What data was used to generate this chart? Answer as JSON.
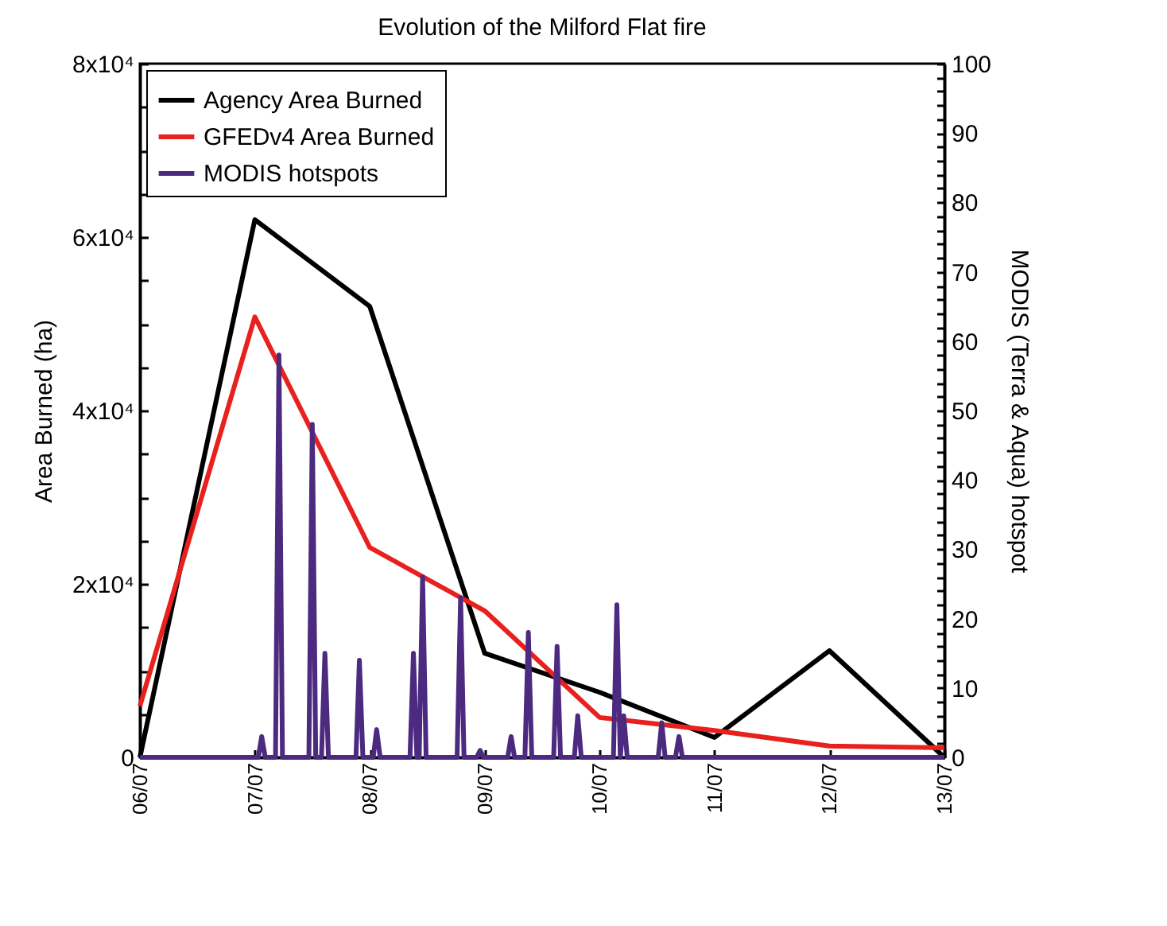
{
  "chart_data": {
    "type": "line",
    "title": "Evolution of the Milford Flat fire",
    "ylabel": "Area Burned (ha)",
    "y2label": "MODIS (Terra & Aqua) hotspot",
    "xlim": [
      "--07-06",
      "--07-13"
    ],
    "xticks": [
      {
        "value": "--07-06",
        "label": "06/07"
      },
      {
        "value": "--07-07",
        "label": "07/07"
      },
      {
        "value": "--07-08",
        "label": "08/07"
      },
      {
        "value": "--07-09",
        "label": "09/07"
      },
      {
        "value": "--07-10",
        "label": "10/07"
      },
      {
        "value": "--07-11",
        "label": "11/07"
      },
      {
        "value": "--07-12",
        "label": "12/07"
      },
      {
        "value": "--07-13",
        "label": "13/07"
      }
    ],
    "ylim": [
      0,
      80000
    ],
    "yticks": [
      {
        "value": 0,
        "label": "0"
      },
      {
        "value": 5000,
        "label": null
      },
      {
        "value": 10000,
        "label": null
      },
      {
        "value": 15000,
        "label": null
      },
      {
        "value": 20000,
        "label": "2x10⁴"
      },
      {
        "value": 25000,
        "label": null
      },
      {
        "value": 30000,
        "label": null
      },
      {
        "value": 35000,
        "label": null
      },
      {
        "value": 40000,
        "label": "4x10⁴"
      },
      {
        "value": 45000,
        "label": null
      },
      {
        "value": 50000,
        "label": null
      },
      {
        "value": 55000,
        "label": null
      },
      {
        "value": 60000,
        "label": "6x10⁴"
      },
      {
        "value": 65000,
        "label": null
      },
      {
        "value": 70000,
        "label": null
      },
      {
        "value": 75000,
        "label": null
      },
      {
        "value": 80000,
        "label": "8x10⁴"
      }
    ],
    "y2lim": [
      0,
      100
    ],
    "y2ticks": [
      {
        "value": 0,
        "label": "0"
      },
      {
        "value": 2,
        "label": null
      },
      {
        "value": 4,
        "label": null
      },
      {
        "value": 6,
        "label": null
      },
      {
        "value": 8,
        "label": null
      },
      {
        "value": 10,
        "label": "10"
      },
      {
        "value": 12,
        "label": null
      },
      {
        "value": 14,
        "label": null
      },
      {
        "value": 16,
        "label": null
      },
      {
        "value": 18,
        "label": null
      },
      {
        "value": 20,
        "label": "20"
      },
      {
        "value": 22,
        "label": null
      },
      {
        "value": 24,
        "label": null
      },
      {
        "value": 26,
        "label": null
      },
      {
        "value": 28,
        "label": null
      },
      {
        "value": 30,
        "label": "30"
      },
      {
        "value": 32,
        "label": null
      },
      {
        "value": 34,
        "label": null
      },
      {
        "value": 36,
        "label": null
      },
      {
        "value": 38,
        "label": null
      },
      {
        "value": 40,
        "label": "40"
      },
      {
        "value": 42,
        "label": null
      },
      {
        "value": 44,
        "label": null
      },
      {
        "value": 46,
        "label": null
      },
      {
        "value": 48,
        "label": null
      },
      {
        "value": 50,
        "label": "50"
      },
      {
        "value": 52,
        "label": null
      },
      {
        "value": 54,
        "label": null
      },
      {
        "value": 56,
        "label": null
      },
      {
        "value": 58,
        "label": null
      },
      {
        "value": 60,
        "label": "60"
      },
      {
        "value": 62,
        "label": null
      },
      {
        "value": 64,
        "label": null
      },
      {
        "value": 66,
        "label": null
      },
      {
        "value": 68,
        "label": null
      },
      {
        "value": 70,
        "label": "70"
      },
      {
        "value": 72,
        "label": null
      },
      {
        "value": 74,
        "label": null
      },
      {
        "value": 76,
        "label": null
      },
      {
        "value": 78,
        "label": null
      },
      {
        "value": 80,
        "label": "80"
      },
      {
        "value": 82,
        "label": null
      },
      {
        "value": 84,
        "label": null
      },
      {
        "value": 86,
        "label": null
      },
      {
        "value": 88,
        "label": null
      },
      {
        "value": 90,
        "label": "90"
      },
      {
        "value": 92,
        "label": null
      },
      {
        "value": 94,
        "label": null
      },
      {
        "value": 96,
        "label": null
      },
      {
        "value": 98,
        "label": null
      },
      {
        "value": 100,
        "label": "100"
      }
    ],
    "legend": "top left",
    "line_style": "solid",
    "series": [
      {
        "name": "Agency Area Burned",
        "color": "#000000",
        "x": [
          "--07-06",
          "--07-07",
          "--07-08",
          "--07-09",
          "--07-10",
          "--07-11",
          "--07-12",
          "--07-13"
        ],
        "values": [
          0,
          62000,
          52000,
          12000,
          7500,
          2300,
          12300,
          0
        ]
      },
      {
        "name": "GFEDv4 Area Burned",
        "color": "#e8211f",
        "x": [
          "--07-06",
          "--07-07",
          "--07-08",
          "--07-09",
          "--07-10",
          "--07-11",
          "--07-12",
          "--07-13"
        ],
        "values": [
          5900,
          50800,
          24200,
          16900,
          4600,
          3100,
          1300,
          1100
        ]
      },
      {
        "name": "MODIS hotspots",
        "color": "#4b2a7f",
        "axis": "y2",
        "x": [
          "--07-06",
          "--07-07T00:43",
          "--07-07T01:26",
          "--07-07T02:10",
          "--07-07T04:19",
          "--07-07T05:02",
          "--07-07T05:46",
          "--07-07T11:17",
          "--07-07T12:00",
          "--07-07T12:43",
          "--07-07T13:55",
          "--07-07T14:38",
          "--07-07T15:22",
          "--07-07T21:07",
          "--07-07T21:50",
          "--07-07T22:34",
          "--07-08T00:43",
          "--07-08T01:26",
          "--07-08T02:10",
          "--07-08T08:24",
          "--07-08T09:07",
          "--07-08T09:50",
          "--07-08T10:19",
          "--07-08T11:02",
          "--07-08T11:46",
          "--07-08T18:14",
          "--07-08T18:58",
          "--07-08T19:41",
          "--07-08T22:19",
          "--07-08T23:02",
          "--07-08T23:46",
          "--07-09T04:48",
          "--07-09T05:31",
          "--07-09T06:14",
          "--07-09T08:24",
          "--07-09T09:07",
          "--07-09T09:50",
          "--07-09T14:24",
          "--07-09T15:07",
          "--07-09T15:50",
          "--07-09T18:43",
          "--07-09T19:26",
          "--07-09T20:10",
          "--07-10T02:53",
          "--07-10T03:36",
          "--07-10T04:19",
          "--07-10T05:02",
          "--07-10T05:46",
          "--07-10T12:14",
          "--07-10T12:58",
          "--07-10T13:41",
          "--07-10T15:50",
          "--07-10T16:34",
          "--07-10T17:17",
          "--07-13"
        ],
        "values": [
          0,
          0,
          3,
          0,
          0,
          58,
          0,
          0,
          48,
          0,
          0,
          15,
          0,
          0,
          14,
          0,
          0,
          4,
          0,
          0,
          15,
          0,
          0,
          26,
          0,
          0,
          23,
          0,
          0,
          1,
          0,
          0,
          3,
          0,
          0,
          18,
          0,
          0,
          16,
          0,
          0,
          6,
          0,
          0,
          22,
          0,
          6,
          0,
          0,
          5,
          0,
          0,
          3,
          0,
          0
        ]
      }
    ]
  }
}
